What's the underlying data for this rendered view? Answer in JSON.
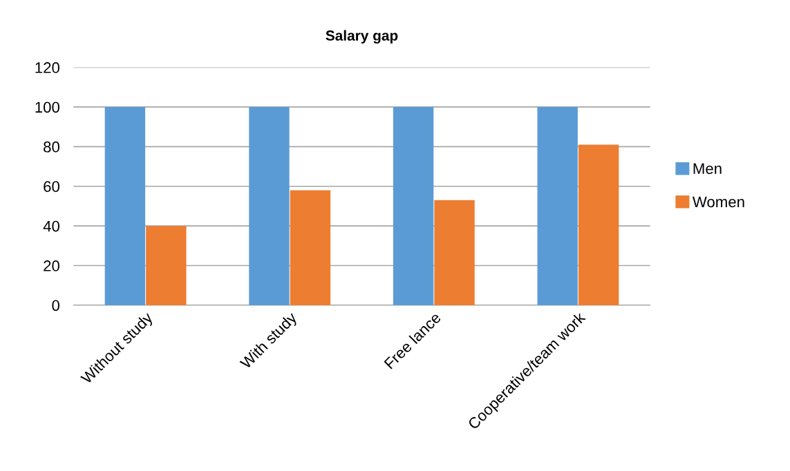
{
  "chart_data": {
    "type": "bar",
    "title": "Salary gap",
    "categories": [
      "Without study",
      "With study",
      "Free lance",
      "Cooperative/team work"
    ],
    "series": [
      {
        "name": "Men",
        "color": "#5b9bd5",
        "values": [
          100,
          100,
          100,
          100
        ]
      },
      {
        "name": "Women",
        "color": "#ed7d31",
        "values": [
          40,
          58,
          53,
          81
        ]
      }
    ],
    "ylim": [
      0,
      120
    ],
    "yticks": [
      0,
      20,
      40,
      60,
      80,
      100,
      120
    ],
    "grid": "y",
    "legend": "right"
  }
}
